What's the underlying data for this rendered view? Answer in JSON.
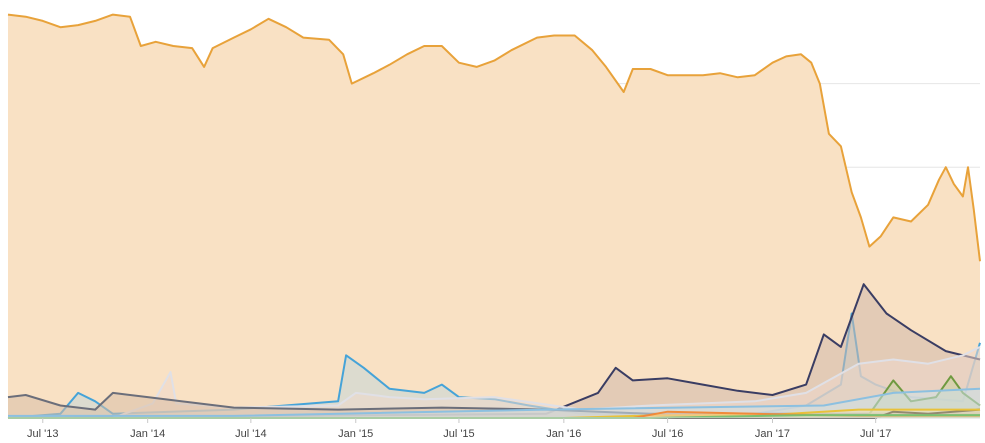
{
  "chart_data": {
    "type": "area",
    "title": "",
    "xlabel": "",
    "ylabel": "",
    "stacking": "overlap",
    "grid": true,
    "legend": "none",
    "x_ticks": [
      "Jul '13",
      "Jan '14",
      "Jul '14",
      "Jan '15",
      "Jul '15",
      "Jan '16",
      "Jul '16",
      "Jan '17",
      "Jul '17"
    ],
    "x_range": [
      "2013-05-01",
      "2017-12-31"
    ],
    "y_range": [
      0,
      100
    ],
    "series": [
      {
        "color": "#e8a23a",
        "fill": "#f9e1c4",
        "values": [
          [
            "2013-05-01",
            96.5
          ],
          [
            "2013-06-01",
            96.0
          ],
          [
            "2013-07-01",
            95.0
          ],
          [
            "2013-08-01",
            93.5
          ],
          [
            "2013-09-01",
            94.0
          ],
          [
            "2013-10-01",
            95.0
          ],
          [
            "2013-11-01",
            96.5
          ],
          [
            "2013-12-01",
            96.0
          ],
          [
            "2013-12-20",
            89.0
          ],
          [
            "2014-01-15",
            90.0
          ],
          [
            "2014-02-15",
            89.0
          ],
          [
            "2014-03-20",
            88.5
          ],
          [
            "2014-04-10",
            84.0
          ],
          [
            "2014-04-25",
            88.5
          ],
          [
            "2014-06-01",
            91.0
          ],
          [
            "2014-07-01",
            93.0
          ],
          [
            "2014-08-01",
            95.5
          ],
          [
            "2014-09-01",
            93.5
          ],
          [
            "2014-10-01",
            91.0
          ],
          [
            "2014-11-15",
            90.5
          ],
          [
            "2014-12-10",
            87.0
          ],
          [
            "2014-12-25",
            80.0
          ],
          [
            "2015-02-01",
            82.5
          ],
          [
            "2015-03-01",
            84.5
          ],
          [
            "2015-04-01",
            87.0
          ],
          [
            "2015-05-01",
            89.0
          ],
          [
            "2015-06-01",
            89.0
          ],
          [
            "2015-07-01",
            85.0
          ],
          [
            "2015-08-01",
            84.0
          ],
          [
            "2015-09-01",
            85.5
          ],
          [
            "2015-10-01",
            88.0
          ],
          [
            "2015-11-15",
            91.0
          ],
          [
            "2015-12-15",
            91.5
          ],
          [
            "2016-01-20",
            91.5
          ],
          [
            "2016-02-20",
            88.0
          ],
          [
            "2016-03-15",
            84.0
          ],
          [
            "2016-04-15",
            78.0
          ],
          [
            "2016-05-01",
            83.5
          ],
          [
            "2016-06-01",
            83.5
          ],
          [
            "2016-07-01",
            82.0
          ],
          [
            "2016-08-01",
            82.0
          ],
          [
            "2016-09-01",
            82.0
          ],
          [
            "2016-10-01",
            82.5
          ],
          [
            "2016-11-01",
            81.5
          ],
          [
            "2016-12-01",
            82.0
          ],
          [
            "2017-01-01",
            85.0
          ],
          [
            "2017-01-25",
            86.5
          ],
          [
            "2017-02-20",
            87.0
          ],
          [
            "2017-03-10",
            85.0
          ],
          [
            "2017-03-25",
            80.0
          ],
          [
            "2017-04-10",
            68.0
          ],
          [
            "2017-05-01",
            65.0
          ],
          [
            "2017-05-20",
            54.0
          ],
          [
            "2017-06-05",
            48.0
          ],
          [
            "2017-06-20",
            41.0
          ],
          [
            "2017-07-10",
            43.5
          ],
          [
            "2017-08-01",
            48.0
          ],
          [
            "2017-09-01",
            47.0
          ],
          [
            "2017-10-01",
            51.0
          ],
          [
            "2017-10-20",
            57.0
          ],
          [
            "2017-11-01",
            60.0
          ],
          [
            "2017-11-15",
            56.0
          ],
          [
            "2017-12-01",
            53.0
          ],
          [
            "2017-12-10",
            60.0
          ],
          [
            "2017-12-20",
            50.0
          ],
          [
            "2017-12-31",
            37.5
          ]
        ]
      },
      {
        "color": "#45a3d8",
        "fill": "#c4d7d8",
        "values": [
          [
            "2013-05-01",
            0.0
          ],
          [
            "2013-08-01",
            1.0
          ],
          [
            "2013-09-01",
            6.0
          ],
          [
            "2013-10-01",
            4.0
          ],
          [
            "2013-11-01",
            1.0
          ],
          [
            "2014-06-01",
            2.0
          ],
          [
            "2014-12-01",
            4.0
          ],
          [
            "2014-12-15",
            15.0
          ],
          [
            "2015-01-15",
            12.0
          ],
          [
            "2015-03-01",
            7.0
          ],
          [
            "2015-05-01",
            6.0
          ],
          [
            "2015-06-01",
            8.0
          ],
          [
            "2015-07-01",
            5.0
          ],
          [
            "2015-09-01",
            4.5
          ],
          [
            "2015-11-01",
            3.0
          ],
          [
            "2016-02-01",
            1.0
          ],
          [
            "2016-12-01",
            1.0
          ],
          [
            "2017-03-01",
            3.0
          ],
          [
            "2017-05-01",
            8.0
          ],
          [
            "2017-05-20",
            25.0
          ],
          [
            "2017-06-05",
            10.0
          ],
          [
            "2017-07-01",
            8.0
          ],
          [
            "2017-09-01",
            5.0
          ],
          [
            "2017-12-01",
            4.0
          ],
          [
            "2017-12-31",
            18.0
          ]
        ]
      },
      {
        "color": "#3a3d63",
        "fill": "#d2b9ab",
        "values": [
          [
            "2013-05-01",
            0.0
          ],
          [
            "2015-12-01",
            1.0
          ],
          [
            "2016-03-01",
            6.0
          ],
          [
            "2016-04-01",
            12.0
          ],
          [
            "2016-05-01",
            9.0
          ],
          [
            "2016-07-01",
            9.5
          ],
          [
            "2016-09-01",
            8.0
          ],
          [
            "2016-11-01",
            6.5
          ],
          [
            "2017-01-01",
            5.5
          ],
          [
            "2017-03-01",
            8.0
          ],
          [
            "2017-04-01",
            20.0
          ],
          [
            "2017-05-01",
            17.0
          ],
          [
            "2017-06-10",
            32.0
          ],
          [
            "2017-07-20",
            25.0
          ],
          [
            "2017-09-01",
            21.0
          ],
          [
            "2017-11-01",
            16.0
          ],
          [
            "2017-12-31",
            14.0
          ]
        ]
      },
      {
        "color": "#e0e0e6",
        "fill": "#eed9cc",
        "values": [
          [
            "2013-05-01",
            0.0
          ],
          [
            "2013-11-01",
            0.0
          ],
          [
            "2014-01-10",
            3.5
          ],
          [
            "2014-02-10",
            11.0
          ],
          [
            "2014-02-20",
            3.5
          ],
          [
            "2014-06-01",
            2.5
          ],
          [
            "2014-12-01",
            3.0
          ],
          [
            "2015-01-01",
            6.0
          ],
          [
            "2015-03-01",
            5.0
          ],
          [
            "2015-05-01",
            4.5
          ],
          [
            "2015-09-01",
            5.0
          ],
          [
            "2016-02-01",
            2.0
          ],
          [
            "2016-06-01",
            3.0
          ],
          [
            "2016-12-01",
            4.0
          ],
          [
            "2017-03-01",
            6.0
          ],
          [
            "2017-06-01",
            13.0
          ],
          [
            "2017-08-01",
            14.0
          ],
          [
            "2017-10-01",
            13.0
          ],
          [
            "2017-12-01",
            15.0
          ],
          [
            "2017-12-31",
            17.0
          ]
        ]
      },
      {
        "color": "#6b6e7a",
        "fill": "#d8c0a8",
        "values": [
          [
            "2013-05-01",
            5.0
          ],
          [
            "2013-06-01",
            5.5
          ],
          [
            "2013-08-01",
            3.0
          ],
          [
            "2013-10-01",
            2.0
          ],
          [
            "2013-11-01",
            6.0
          ],
          [
            "2014-01-01",
            5.0
          ],
          [
            "2014-03-01",
            4.0
          ],
          [
            "2014-06-01",
            2.5
          ],
          [
            "2014-12-01",
            2.0
          ],
          [
            "2015-06-01",
            2.5
          ],
          [
            "2015-12-01",
            2.0
          ],
          [
            "2016-06-01",
            1.0
          ],
          [
            "2017-12-31",
            1.0
          ]
        ]
      },
      {
        "color": "#6f9a40",
        "fill": "#c8cfa0",
        "values": [
          [
            "2013-05-01",
            0.0
          ],
          [
            "2017-06-15",
            0.0
          ],
          [
            "2017-08-01",
            9.0
          ],
          [
            "2017-09-01",
            4.0
          ],
          [
            "2017-10-15",
            5.0
          ],
          [
            "2017-11-10",
            10.0
          ],
          [
            "2017-12-01",
            6.0
          ],
          [
            "2017-12-31",
            3.0
          ]
        ]
      },
      {
        "color": "#8cc0e0",
        "fill": "#cde0e8",
        "values": [
          [
            "2013-05-01",
            0.5
          ],
          [
            "2014-06-01",
            0.5
          ],
          [
            "2015-12-01",
            2.0
          ],
          [
            "2017-04-01",
            3.0
          ],
          [
            "2017-08-01",
            6.0
          ],
          [
            "2017-12-31",
            7.0
          ]
        ]
      },
      {
        "color": "#222222",
        "fill": "#bbbbbb",
        "values": [
          [
            "2013-05-01",
            0.0
          ],
          [
            "2017-07-01",
            0.0
          ],
          [
            "2017-08-01",
            1.5
          ],
          [
            "2017-10-01",
            1.0
          ],
          [
            "2017-12-31",
            2.0
          ]
        ]
      },
      {
        "color": "#e8c23a",
        "fill": "#f0e0b0",
        "values": [
          [
            "2013-05-01",
            0.0
          ],
          [
            "2016-01-01",
            0.0
          ],
          [
            "2016-06-01",
            0.6
          ],
          [
            "2017-01-01",
            0.8
          ],
          [
            "2017-06-01",
            2.0
          ],
          [
            "2017-12-31",
            2.0
          ]
        ]
      },
      {
        "color": "#f08a3a",
        "fill": "#f7d0b0",
        "values": [
          [
            "2013-05-01",
            0.0
          ],
          [
            "2016-05-01",
            0.0
          ],
          [
            "2016-07-01",
            1.5
          ],
          [
            "2016-12-01",
            1.0
          ],
          [
            "2017-06-01",
            0.5
          ],
          [
            "2017-12-31",
            0.5
          ]
        ]
      },
      {
        "color": "#7bc070",
        "fill": "#c8e0b8",
        "values": [
          [
            "2013-05-01",
            0.0
          ],
          [
            "2016-06-01",
            0.0
          ],
          [
            "2017-03-01",
            0.7
          ],
          [
            "2017-12-31",
            0.7
          ]
        ]
      }
    ]
  }
}
